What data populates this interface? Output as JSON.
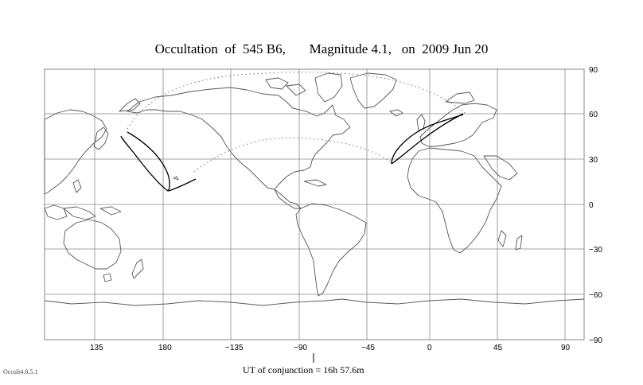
{
  "title": {
    "star": "Occultation  of  545 B6,",
    "magnitude": "Magnitude 4.1,",
    "date": "on  2009 Jun 20"
  },
  "lon_ticks": [
    "135",
    "180",
    "−135",
    "−90",
    "−45",
    "0",
    "45",
    "90"
  ],
  "lat_ticks": [
    "90",
    "60",
    "30",
    "0",
    "−30",
    "−60",
    "−90"
  ],
  "conjunction_label": "UT of conjunction = 16h 57.6m",
  "version": "Occult4.0.5.1",
  "colors": {
    "grid": "#8a8a8a",
    "land": "#555555",
    "track": "#000000"
  }
}
